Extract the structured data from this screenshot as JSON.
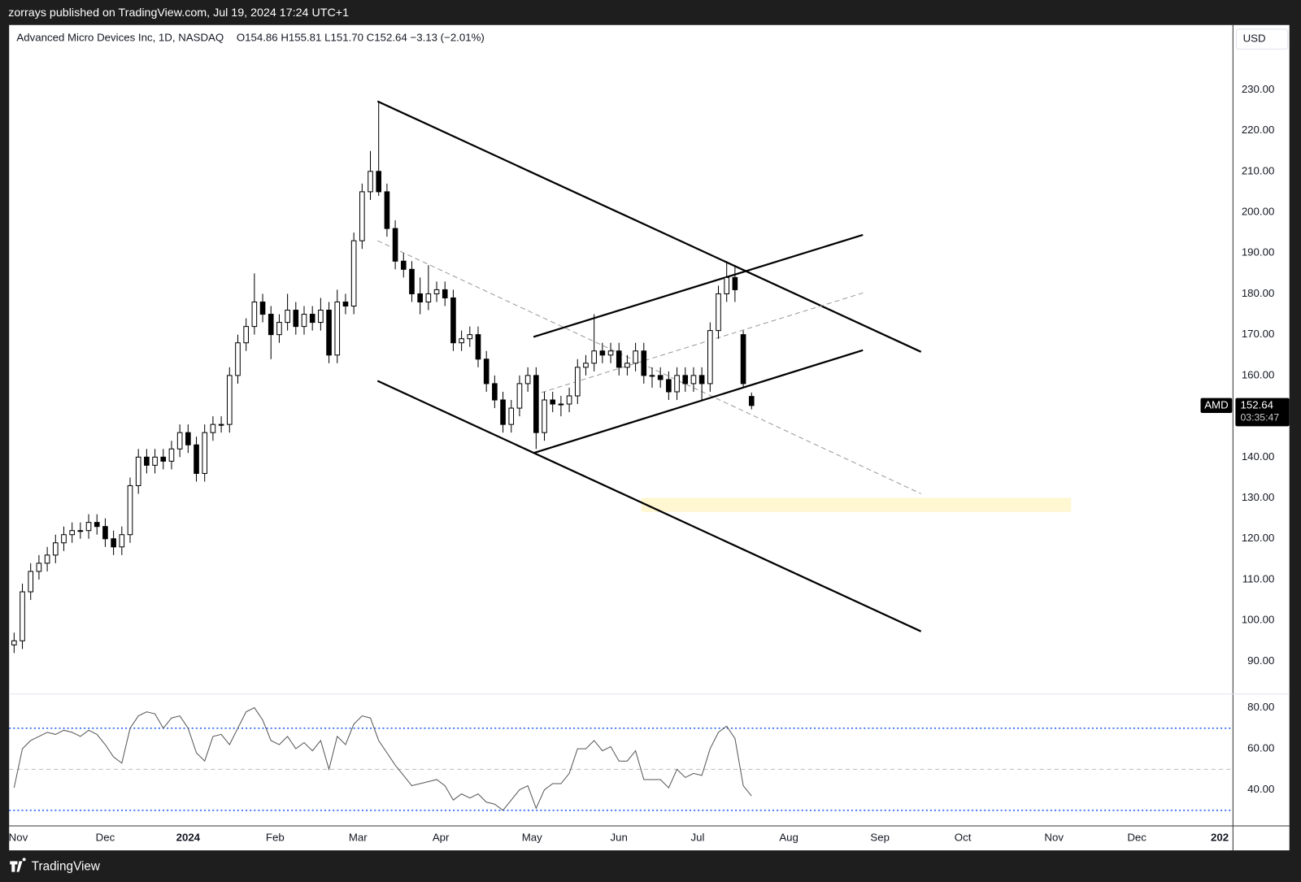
{
  "header": {
    "publisher": "zorrays published on TradingView.com, Jul 19, 2024 17:24 UTC+1"
  },
  "footer": {
    "brand": "TradingView"
  },
  "chart_data": [
    {
      "type": "candlestick",
      "title": "Advanced Micro Devices Inc, 1D, NASDAQ",
      "legend_values": "O154.86  H155.81  L151.70  C152.64  −3.13 (−2.01%)",
      "currency": "USD",
      "symbol_label": "AMD",
      "last_price_label": "152.64",
      "countdown": "03:35:47",
      "x": [
        0,
        2,
        4,
        6,
        8,
        10,
        12,
        14,
        16,
        18,
        20,
        22,
        24,
        26,
        28,
        30,
        32,
        34,
        36,
        38,
        40,
        42,
        44,
        46,
        48,
        50,
        52,
        54,
        56,
        58,
        60,
        62,
        64,
        66,
        68,
        70,
        72,
        74,
        76,
        78,
        80,
        82,
        84,
        86,
        88,
        90,
        92,
        94,
        96,
        98,
        100,
        102,
        104,
        106,
        108,
        110,
        112,
        114,
        116,
        118,
        120,
        122,
        124,
        126,
        128,
        130,
        132,
        134,
        136,
        138,
        140,
        142,
        144,
        146,
        148,
        150,
        152,
        154,
        156,
        158,
        160,
        162,
        164,
        166,
        168,
        170,
        172,
        174,
        176,
        178
      ],
      "open": [
        94,
        95,
        107,
        112,
        114,
        116,
        119,
        121,
        122,
        122,
        124,
        123,
        120,
        118,
        121,
        133,
        140,
        138,
        140,
        139,
        142,
        146,
        143,
        136,
        146,
        148,
        148,
        160,
        168,
        172,
        178,
        175,
        170,
        173,
        176,
        172,
        175,
        173,
        176,
        165,
        178,
        177,
        193,
        205,
        210,
        205,
        196,
        188,
        186,
        180,
        178,
        180,
        181,
        179,
        168,
        169,
        170,
        164,
        158,
        154,
        148,
        152,
        158,
        160,
        146,
        154,
        153,
        153,
        155,
        162,
        163,
        166,
        165,
        166,
        162,
        163,
        166,
        160,
        160,
        159,
        156,
        160,
        158,
        160,
        158,
        171,
        180,
        184,
        170,
        154.86
      ],
      "high": [
        97,
        109,
        114,
        116,
        118,
        121,
        123,
        124,
        124,
        126,
        126,
        125,
        122,
        123,
        135,
        142,
        142,
        142,
        142,
        144,
        148,
        148,
        145,
        148,
        150,
        150,
        162,
        170,
        174,
        185,
        180,
        177,
        175,
        180,
        178,
        177,
        177,
        179,
        178,
        181,
        180,
        195,
        207,
        215,
        227,
        207,
        198,
        190,
        188,
        184,
        187,
        183,
        183,
        181,
        171,
        172,
        172,
        166,
        160,
        156,
        154,
        160,
        162,
        162,
        156,
        156,
        155,
        157,
        164,
        165,
        175,
        168,
        168,
        168,
        165,
        168,
        168,
        162,
        162,
        161,
        162,
        162,
        162,
        162,
        173,
        182,
        188,
        187,
        171,
        155.81
      ],
      "low": [
        92,
        93,
        105,
        110,
        112,
        114,
        117,
        119,
        120,
        120,
        121,
        118,
        116,
        116,
        119,
        131,
        136,
        136,
        137,
        137,
        140,
        141,
        134,
        134,
        144,
        146,
        146,
        158,
        166,
        170,
        173,
        164,
        168,
        171,
        170,
        170,
        171,
        171,
        163,
        163,
        175,
        175,
        191,
        203,
        204,
        194,
        186,
        184,
        178,
        175,
        176,
        178,
        177,
        166,
        166,
        167,
        162,
        156,
        152,
        146,
        146,
        150,
        156,
        142,
        144,
        151,
        150,
        151,
        153,
        160,
        161,
        163,
        163,
        160,
        160,
        161,
        158,
        157,
        157,
        154,
        154,
        156,
        156,
        154,
        156,
        169,
        178,
        178,
        157,
        151.7
      ],
      "close": [
        95,
        107,
        112,
        114,
        116,
        119,
        121,
        122,
        122,
        124,
        123,
        120,
        118,
        121,
        133,
        140,
        138,
        140,
        139,
        142,
        146,
        143,
        136,
        146,
        148,
        148,
        160,
        168,
        172,
        178,
        175,
        170,
        173,
        176,
        172,
        175,
        173,
        176,
        165,
        178,
        177,
        193,
        205,
        210,
        205,
        196,
        188,
        186,
        180,
        178,
        180,
        181,
        179,
        168,
        169,
        170,
        164,
        158,
        154,
        148,
        152,
        158,
        160,
        146,
        154,
        153,
        153,
        155,
        162,
        163,
        166,
        165,
        166,
        162,
        163,
        166,
        160,
        160,
        159,
        156,
        160,
        158,
        160,
        158,
        171,
        180,
        184,
        181,
        158,
        152.64
      ],
      "up_color": "#ffffff",
      "down_color": "#000000",
      "edge_color": "#000000",
      "xlim": [
        -1,
        294
      ],
      "xticks": [
        {
          "value": 1,
          "label": "Nov"
        },
        {
          "value": 22,
          "label": "Dec"
        },
        {
          "value": 42,
          "label": "2024"
        },
        {
          "value": 63,
          "label": "Feb"
        },
        {
          "value": 83,
          "label": "Mar"
        },
        {
          "value": 103,
          "label": "Apr"
        },
        {
          "value": 125,
          "label": "May"
        },
        {
          "value": 146,
          "label": "Jun"
        },
        {
          "value": 165,
          "label": "Jul"
        },
        {
          "value": 187,
          "label": "Aug"
        },
        {
          "value": 209,
          "label": "Sep"
        },
        {
          "value": 229,
          "label": "Oct"
        },
        {
          "value": 251,
          "label": "Nov"
        },
        {
          "value": 271,
          "label": "Dec"
        },
        {
          "value": 291,
          "label": "202"
        }
      ],
      "ylim": [
        82.07,
        245.85
      ],
      "yticks": [
        {
          "value": 90,
          "label": "90.00"
        },
        {
          "value": 100,
          "label": "100.00"
        },
        {
          "value": 110,
          "label": "110.00"
        },
        {
          "value": 120,
          "label": "120.00"
        },
        {
          "value": 130,
          "label": "130.00"
        },
        {
          "value": 140,
          "label": "140.00"
        },
        {
          "value": 150,
          "label": "150.00"
        },
        {
          "value": 160,
          "label": "160.00"
        },
        {
          "value": 170,
          "label": "170.00"
        },
        {
          "value": 180,
          "label": "180.00"
        },
        {
          "value": 190,
          "label": "190.00"
        },
        {
          "value": 200,
          "label": "200.00"
        },
        {
          "value": 210,
          "label": "210.00"
        },
        {
          "value": 220,
          "label": "220.00"
        },
        {
          "value": 230,
          "label": "230.00"
        }
      ]
    },
    {
      "type": "line",
      "x": [
        0,
        2,
        4,
        6,
        8,
        10,
        12,
        14,
        16,
        18,
        20,
        22,
        24,
        26,
        28,
        30,
        32,
        34,
        36,
        38,
        40,
        42,
        44,
        46,
        48,
        50,
        52,
        54,
        56,
        58,
        60,
        62,
        64,
        66,
        68,
        70,
        72,
        74,
        76,
        78,
        80,
        82,
        84,
        86,
        88,
        90,
        92,
        94,
        96,
        98,
        100,
        102,
        104,
        106,
        108,
        110,
        112,
        114,
        116,
        118,
        120,
        122,
        124,
        126,
        128,
        130,
        132,
        134,
        136,
        138,
        140,
        142,
        144,
        146,
        148,
        150,
        152,
        154,
        156,
        158,
        160,
        162,
        164,
        166,
        168,
        170,
        172,
        174,
        176,
        178
      ],
      "values": [
        41,
        60,
        64,
        66,
        68,
        67,
        69,
        68,
        66,
        69,
        67,
        62,
        56,
        53,
        70,
        76,
        78,
        77,
        70,
        75,
        76,
        70,
        58,
        54,
        66,
        67,
        62,
        70,
        78,
        80,
        74,
        64,
        62,
        66,
        60,
        63,
        59,
        64,
        50,
        66,
        62,
        72,
        76,
        75,
        64,
        58,
        52,
        47,
        42,
        43,
        44,
        45,
        42,
        35,
        38,
        36,
        38,
        34,
        33,
        30,
        35,
        40,
        42,
        31,
        40,
        43,
        43,
        48,
        60,
        60,
        64,
        59,
        61,
        54,
        54,
        59,
        45,
        45,
        45,
        41,
        50,
        46,
        48,
        47,
        60,
        68,
        71,
        65,
        42,
        37
      ],
      "color": "#555555",
      "levels": [
        70,
        50,
        30
      ],
      "ylim": [
        22.63,
        86.87
      ],
      "yticks": [
        {
          "value": 40,
          "label": "40.00"
        },
        {
          "value": 60,
          "label": "60.00"
        },
        {
          "value": 80,
          "label": "80.00"
        }
      ]
    }
  ]
}
